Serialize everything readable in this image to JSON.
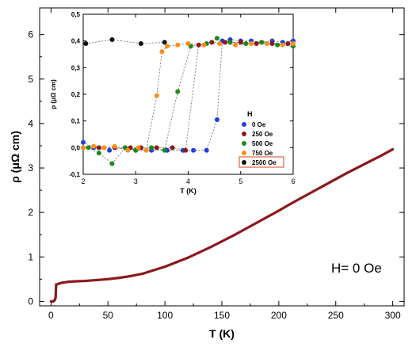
{
  "chart_data": [
    {
      "type": "line",
      "xlabel": "T (K)",
      "ylabel": "ρ (μΩ cm)",
      "xlim": [
        -10,
        310
      ],
      "ylim": [
        -0.1,
        6.6
      ],
      "xticks": [
        0,
        50,
        100,
        150,
        200,
        250,
        300
      ],
      "yticks": [
        0,
        1,
        2,
        3,
        4,
        5,
        6
      ],
      "annotation": "H= 0 Oe",
      "series": [
        {
          "color": "#8B1A1A",
          "x": [
            0,
            2,
            3,
            4,
            4.5,
            5,
            7,
            10,
            15,
            20,
            30,
            40,
            50,
            60,
            70,
            80,
            90,
            100,
            110,
            120,
            130,
            140,
            150,
            160,
            170,
            180,
            190,
            200,
            210,
            220,
            230,
            240,
            250,
            260,
            270,
            280,
            290,
            300
          ],
          "y": [
            0.0,
            0.0,
            0.02,
            0.08,
            0.38,
            0.38,
            0.4,
            0.42,
            0.44,
            0.45,
            0.46,
            0.48,
            0.5,
            0.53,
            0.57,
            0.62,
            0.7,
            0.78,
            0.88,
            0.98,
            1.1,
            1.22,
            1.35,
            1.48,
            1.62,
            1.76,
            1.9,
            2.04,
            2.19,
            2.33,
            2.47,
            2.61,
            2.75,
            2.89,
            3.02,
            3.15,
            3.28,
            3.42
          ]
        }
      ]
    },
    {
      "type": "scatter",
      "xlabel": "T (K)",
      "ylabel": "ρ (μΩ cm)",
      "xlim": [
        2,
        6
      ],
      "ylim": [
        -0.1,
        0.5
      ],
      "xticks": [
        2,
        3,
        4,
        5,
        6
      ],
      "yticks": [
        -0.1,
        0.0,
        0.1,
        0.2,
        0.3,
        0.4,
        0.5
      ],
      "ytick_labels": [
        "-0,1",
        "0,0",
        "0,1",
        "0,2",
        "0,3",
        "0,4",
        "0,5"
      ],
      "legend_title": "H",
      "legend_position": "bottom-right",
      "series": [
        {
          "name": "0 Oe",
          "color": "#1f3fe0",
          "x": [
            2.0,
            2.2,
            2.5,
            2.8,
            3.0,
            3.3,
            3.6,
            3.9,
            4.1,
            4.35,
            4.55,
            4.65,
            4.8,
            5.0,
            5.2,
            5.4,
            5.6,
            5.8,
            6.0
          ],
          "y": [
            0.02,
            0.0,
            -0.01,
            0.0,
            -0.01,
            -0.01,
            -0.01,
            -0.01,
            -0.01,
            -0.01,
            0.105,
            0.4,
            0.405,
            0.4,
            0.4,
            0.395,
            0.4,
            0.395,
            0.4
          ]
        },
        {
          "name": "250 Oe",
          "color": "#8B1A1A",
          "x": [
            2.0,
            2.3,
            2.6,
            2.9,
            3.1,
            3.4,
            3.7,
            3.95,
            4.2,
            4.45,
            4.7,
            5.0,
            5.3,
            5.6,
            5.9
          ],
          "y": [
            0.0,
            0.0,
            0.0,
            0.0,
            0.0,
            0.0,
            0.0,
            -0.01,
            0.385,
            0.395,
            0.395,
            0.395,
            0.39,
            0.39,
            0.39
          ]
        },
        {
          "name": "500 Oe",
          "color": "#1a8a1a",
          "x": [
            2.1,
            2.3,
            2.55,
            2.8,
            3.0,
            3.3,
            3.55,
            3.8,
            4.05,
            4.35,
            4.55,
            4.8,
            5.1,
            5.4,
            5.7,
            6.0
          ],
          "y": [
            0.0,
            -0.02,
            -0.06,
            0.0,
            -0.01,
            0.0,
            -0.01,
            0.21,
            0.38,
            0.39,
            0.41,
            0.395,
            0.39,
            0.395,
            0.385,
            0.38
          ]
        },
        {
          "name": "750 Oe",
          "color": "#ff8c1a",
          "x": [
            2.0,
            2.2,
            2.4,
            2.6,
            2.85,
            3.05,
            3.2,
            3.4,
            3.5,
            3.6,
            3.8,
            4.0,
            4.3,
            4.6,
            4.9,
            5.2,
            5.5,
            5.8,
            6.0
          ],
          "y": [
            0.0,
            0.005,
            0.0,
            0.005,
            -0.01,
            0.0,
            -0.01,
            0.195,
            0.36,
            0.38,
            0.385,
            0.39,
            0.385,
            0.39,
            0.385,
            0.39,
            0.39,
            0.385,
            0.39
          ]
        },
        {
          "name": "2500 Oe",
          "color": "#111111",
          "x": [
            2.05,
            2.55,
            3.1,
            3.55
          ],
          "y": [
            0.39,
            0.405,
            0.39,
            0.395
          ]
        }
      ]
    }
  ]
}
